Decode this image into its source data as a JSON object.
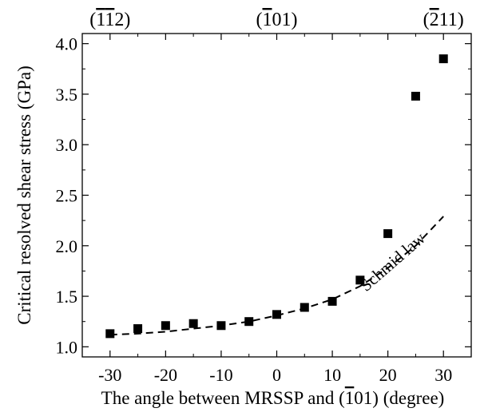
{
  "chart_data": {
    "type": "scatter",
    "xlabel": {
      "before": "The angle between MRSSP and (",
      "overlined": "1",
      "after": "01) (degree)"
    },
    "ylabel": "Critical resolved shear stress (GPa)",
    "xlim": [
      -35,
      35
    ],
    "ylim": [
      0.9,
      4.1
    ],
    "xticks": [
      -30,
      -20,
      -10,
      0,
      10,
      20,
      30
    ],
    "xtick_labels": [
      "-30",
      "-20",
      "-10",
      "0",
      "10",
      "20",
      "30"
    ],
    "yticks": [
      1.0,
      1.5,
      2.0,
      2.5,
      3.0,
      3.5,
      4.0
    ],
    "ytick_labels": [
      "1.0",
      "1.5",
      "2.0",
      "2.5",
      "3.0",
      "3.5",
      "4.0"
    ],
    "top_axis_labels": [
      {
        "x": -30,
        "parts": [
          {
            "t": "(",
            "o": false
          },
          {
            "t": "1",
            "o": true
          },
          {
            "t": "1",
            "o": true
          },
          {
            "t": "2)",
            "o": false
          }
        ]
      },
      {
        "x": 0,
        "parts": [
          {
            "t": "(",
            "o": false
          },
          {
            "t": "1",
            "o": true
          },
          {
            "t": "01)",
            "o": false
          }
        ]
      },
      {
        "x": 30,
        "parts": [
          {
            "t": "(",
            "o": false
          },
          {
            "t": "2",
            "o": true
          },
          {
            "t": "11)",
            "o": false
          }
        ]
      }
    ],
    "series": [
      {
        "marker": "square",
        "color": "#000000",
        "x": [
          -30,
          -25,
          -20,
          -15,
          -10,
          -5,
          0,
          5,
          10,
          15,
          20,
          25,
          30
        ],
        "y": [
          1.13,
          1.18,
          1.21,
          1.23,
          1.21,
          1.25,
          1.32,
          1.39,
          1.45,
          1.66,
          2.12,
          3.48,
          3.85
        ]
      },
      {
        "name": "Schmid law",
        "line": "dashed",
        "color": "#000000",
        "x": [
          -30,
          -25,
          -20,
          -15,
          -10,
          -5,
          0,
          5,
          10,
          15,
          20,
          25,
          30
        ],
        "y": [
          1.12,
          1.13,
          1.15,
          1.18,
          1.21,
          1.25,
          1.31,
          1.38,
          1.47,
          1.6,
          1.78,
          2.0,
          2.29
        ]
      }
    ],
    "annotations": [
      {
        "text": "Schmid law",
        "x": 21.5,
        "y": 1.8
      }
    ],
    "grid": false,
    "minor_ticks": true
  }
}
